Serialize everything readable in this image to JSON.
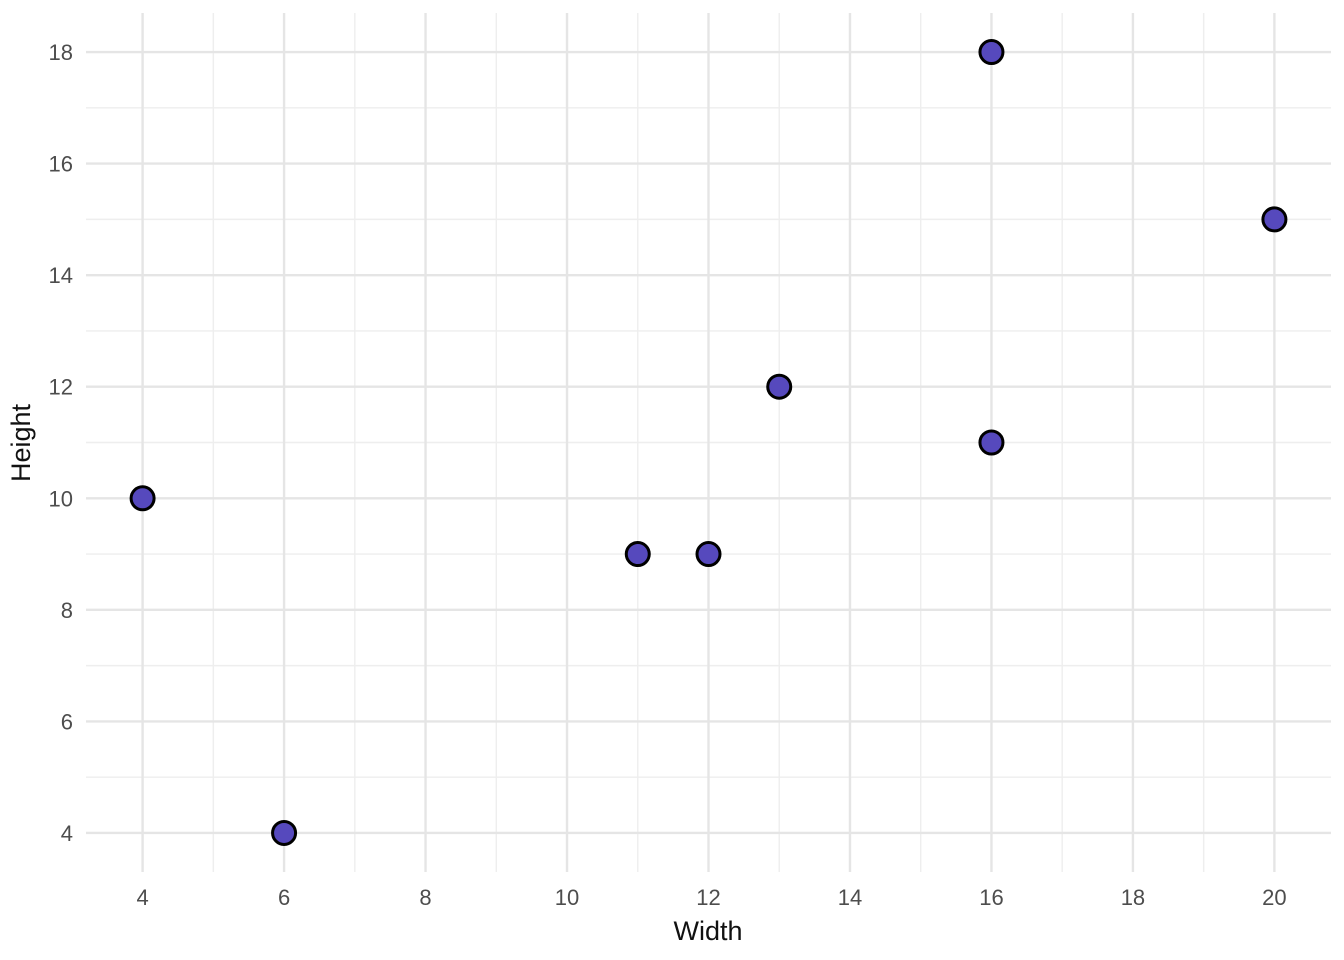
{
  "chart_data": {
    "type": "scatter",
    "title": "",
    "xlabel": "Width",
    "ylabel": "Height",
    "points": [
      {
        "x": 4,
        "y": 10
      },
      {
        "x": 6,
        "y": 4
      },
      {
        "x": 11,
        "y": 9
      },
      {
        "x": 12,
        "y": 9
      },
      {
        "x": 13,
        "y": 12
      },
      {
        "x": 16,
        "y": 11
      },
      {
        "x": 16,
        "y": 18
      },
      {
        "x": 20,
        "y": 15
      }
    ],
    "xlim": [
      3.2,
      20.8
    ],
    "ylim": [
      3.3,
      18.7
    ],
    "x_ticks": [
      4,
      6,
      8,
      10,
      12,
      14,
      16,
      18,
      20
    ],
    "y_ticks": [
      4,
      6,
      8,
      10,
      12,
      14,
      16,
      18
    ],
    "x_minor_gridlines": [
      5,
      7,
      9,
      11,
      13,
      15,
      17,
      19
    ],
    "y_minor_gridlines": [
      5,
      7,
      9,
      11,
      13,
      15,
      17
    ],
    "grid": true,
    "legend": "none",
    "style": {
      "point_fill": "#5649bd",
      "point_stroke": "#000000",
      "point_radius": 11.5,
      "point_stroke_width": 3,
      "grid_major_color": "#e5e5e5",
      "grid_minor_color": "#eeeeee",
      "grid_major_width": 2.4,
      "grid_minor_width": 1.4,
      "background": "#ffffff",
      "tick_label_color": "#4d4d4d",
      "axis_title_color": "#111111"
    }
  }
}
